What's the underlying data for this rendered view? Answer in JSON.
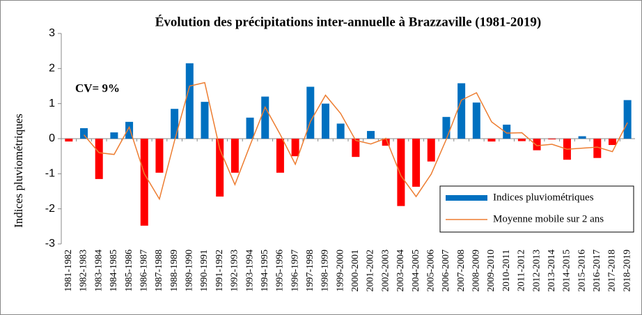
{
  "chart_data": {
    "type": "bar",
    "title": "Évolution des précipitations inter-annuelle à Brazzaville (1981-2019)",
    "y_label": "Indices  pluviométriques",
    "annotation": "CV= 9%",
    "categories": [
      "1981-1982",
      "1982-1983",
      "1983-1984",
      "1984-1985",
      "1985-1986",
      "1986-1987",
      "1987-1988",
      "1988-1989",
      "1989-1990",
      "1990-1991",
      "1991-1992",
      "1992-1993",
      "1993-1994",
      "1994-1995",
      "1995-1996",
      "1996-1997",
      "1997-1998",
      "1998-1999",
      "1999-2000",
      "2000-2001",
      "2001-2002",
      "2002-2003",
      "2003-2004",
      "2004-2005",
      "2005-2006",
      "2006-2007",
      "2007-2008",
      "2008-2009",
      "2009-2010",
      "2010-2011",
      "2011-2012",
      "2012-2013",
      "2013-2014",
      "2014-2015",
      "2015-2016",
      "2016-2017",
      "2017-2018",
      "2018-2019"
    ],
    "series": [
      {
        "name": "Indices pluviométriques",
        "color": "#0070c0",
        "negative_color": "#ff0000",
        "values": [
          -0.08,
          0.3,
          -1.15,
          0.18,
          0.48,
          -2.48,
          -0.97,
          0.85,
          2.15,
          1.05,
          -1.65,
          -0.97,
          0.6,
          1.2,
          -0.97,
          -0.5,
          1.48,
          1.0,
          0.43,
          -0.52,
          0.22,
          -0.2,
          -1.92,
          -1.37,
          -0.65,
          0.62,
          1.58,
          1.03,
          -0.08,
          0.4,
          -0.07,
          -0.33,
          -0.02,
          -0.6,
          0.07,
          -0.55,
          -0.18,
          1.1
        ]
      },
      {
        "name": "Moyenne mobile sur 2 ans",
        "color": "#ed7d31",
        "type": "line",
        "values": [
          null,
          0.11,
          -0.4,
          -0.45,
          0.33,
          -1.0,
          -1.72,
          -0.06,
          1.5,
          1.6,
          -0.3,
          -1.31,
          -0.19,
          0.9,
          0.12,
          -0.73,
          0.49,
          1.24,
          0.72,
          -0.05,
          -0.15,
          0.01,
          -1.06,
          -1.65,
          -1.01,
          -0.02,
          1.1,
          1.31,
          0.48,
          0.16,
          0.17,
          -0.2,
          -0.16,
          -0.3,
          -0.27,
          -0.24,
          -0.37,
          0.46
        ]
      }
    ],
    "ylim": [
      -3,
      3
    ],
    "yticks": [
      -3,
      -2,
      -1,
      0,
      1,
      2,
      3
    ],
    "grid": false,
    "legend": "lower right"
  }
}
